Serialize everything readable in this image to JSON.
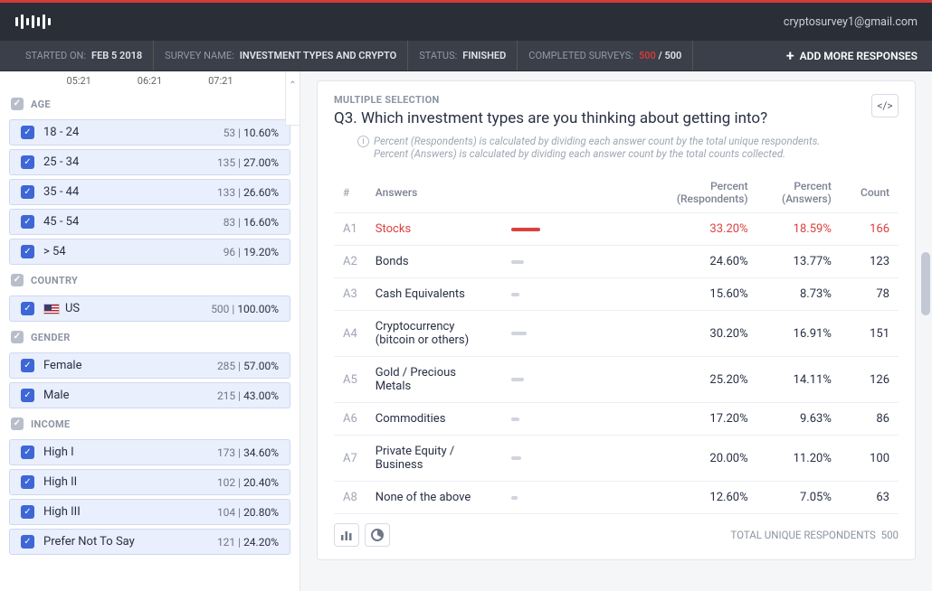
{
  "header": {
    "user_email": "cryptosurvey1@gmail.com"
  },
  "infobar": {
    "started_on_lbl": "STARTED ON:",
    "started_on_val": "FEB 5 2018",
    "survey_name_lbl": "SURVEY NAME:",
    "survey_name_val": "INVESTMENT TYPES AND CRYPTO",
    "status_lbl": "STATUS:",
    "status_val": "FINISHED",
    "completed_lbl": "COMPLETED SURVEYS:",
    "completed_n": "500",
    "completed_total": " / 500",
    "add_more": "ADD MORE RESPONSES"
  },
  "sidebar": {
    "times": [
      "05:21",
      "06:21",
      "07:21"
    ],
    "groups": [
      {
        "label": "AGE",
        "items": [
          {
            "label": "18 - 24",
            "count": "53",
            "pct": "10.60%"
          },
          {
            "label": "25 - 34",
            "count": "135",
            "pct": "27.00%"
          },
          {
            "label": "35 - 44",
            "count": "133",
            "pct": "26.60%"
          },
          {
            "label": "45 - 54",
            "count": "83",
            "pct": "16.60%"
          },
          {
            "label": "> 54",
            "count": "96",
            "pct": "19.20%"
          }
        ]
      },
      {
        "label": "COUNTRY",
        "items": [
          {
            "label": "US",
            "count": "500",
            "pct": "100.00%",
            "flag": true
          }
        ]
      },
      {
        "label": "GENDER",
        "items": [
          {
            "label": "Female",
            "count": "285",
            "pct": "57.00%"
          },
          {
            "label": "Male",
            "count": "215",
            "pct": "43.00%"
          }
        ]
      },
      {
        "label": "INCOME",
        "items": [
          {
            "label": "High I",
            "count": "173",
            "pct": "34.60%"
          },
          {
            "label": "High II",
            "count": "102",
            "pct": "20.40%"
          },
          {
            "label": "High III",
            "count": "104",
            "pct": "20.80%"
          },
          {
            "label": "Prefer Not To Say",
            "count": "121",
            "pct": "24.20%"
          }
        ]
      }
    ]
  },
  "question": {
    "type_lbl": "MULTIPLE SELECTION",
    "title": "Q3. Which investment types are you thinking about getting into?",
    "info1": "Percent (Respondents) is calculated by dividing each answer count by the total unique respondents.",
    "info2": "Percent (Answers) is calculated by dividing each answer count by the total counts collected.",
    "headers": {
      "hash": "#",
      "answers": "Answers",
      "presp": "Percent\n(Respondents)",
      "pans": "Percent\n(Answers)",
      "count": "Count"
    },
    "answers": [
      {
        "id": "A1",
        "name": "Stocks",
        "presp": "33.20%",
        "pans": "18.59%",
        "count": "166",
        "bar_pct": 33.2,
        "highlight": true
      },
      {
        "id": "A2",
        "name": "Bonds",
        "presp": "24.60%",
        "pans": "13.77%",
        "count": "123",
        "bar_pct": 24.6
      },
      {
        "id": "A3",
        "name": "Cash Equivalents",
        "presp": "15.60%",
        "pans": "8.73%",
        "count": "78",
        "bar_pct": 15.6
      },
      {
        "id": "A4",
        "name": "Cryptocurrency (bitcoin or others)",
        "presp": "30.20%",
        "pans": "16.91%",
        "count": "151",
        "bar_pct": 30.2
      },
      {
        "id": "A5",
        "name": "Gold / Precious Metals",
        "presp": "25.20%",
        "pans": "14.11%",
        "count": "126",
        "bar_pct": 25.2
      },
      {
        "id": "A6",
        "name": "Commodities",
        "presp": "17.20%",
        "pans": "9.63%",
        "count": "86",
        "bar_pct": 17.2
      },
      {
        "id": "A7",
        "name": "Private Equity / Business",
        "presp": "20.00%",
        "pans": "11.20%",
        "count": "100",
        "bar_pct": 20.0
      },
      {
        "id": "A8",
        "name": "None of the above",
        "presp": "12.60%",
        "pans": "7.05%",
        "count": "63",
        "bar_pct": 12.6
      }
    ],
    "footer_total_lbl": "TOTAL UNIQUE RESPONDENTS",
    "footer_total_val": "500"
  },
  "colors": {
    "accent_red": "#d63b3b",
    "row_blue_bg": "#e9effc",
    "check_blue": "#3e66d6"
  }
}
